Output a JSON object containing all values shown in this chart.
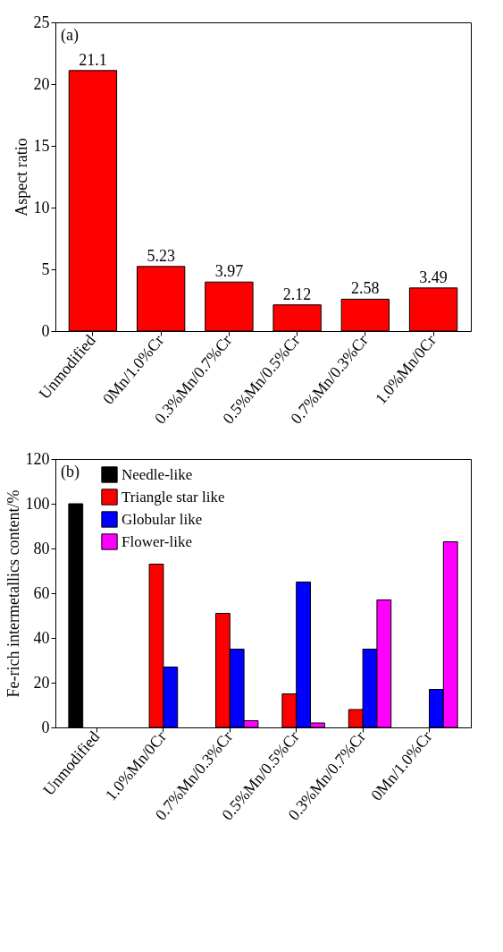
{
  "chart_data": [
    {
      "type": "bar",
      "annotations": [
        "(a)"
      ],
      "ylabel": "Aspect ratio",
      "categories": [
        "Unmodified",
        "0Mn/1.0%Cr",
        "0.3%Mn/0.7%Cr",
        "0.5%Mn/0.5%Cr",
        "0.7%Mn/0.3%Cr",
        "1.0%Mn/0Cr"
      ],
      "values": [
        21.1,
        5.23,
        3.97,
        2.12,
        2.58,
        3.49
      ],
      "color": "#ff0000",
      "data_labels": true,
      "ylim": [
        0,
        25
      ],
      "yticks": [
        0,
        5,
        10,
        15,
        20,
        25
      ],
      "grid": false,
      "legend": false
    },
    {
      "type": "bar",
      "annotations": [
        "(b)"
      ],
      "ylabel": "Fe-rich intermetallics content/%",
      "categories": [
        "Unmodified",
        "1.0%Mn/0Cr",
        "0.7%Mn/0.3%Cr",
        "0.5%Mn/0.5%Cr",
        "0.3%Mn/0.7%Cr",
        "0Mn/1.0%Cr"
      ],
      "series": [
        {
          "name": "Needle-like",
          "color": "#000000",
          "values": [
            100,
            null,
            null,
            null,
            null,
            null
          ]
        },
        {
          "name": "Triangle star like",
          "color": "#ff0000",
          "values": [
            null,
            73,
            51,
            15,
            8,
            null
          ]
        },
        {
          "name": "Globular like",
          "color": "#0000ff",
          "values": [
            null,
            27,
            35,
            65,
            35,
            17
          ]
        },
        {
          "name": "Flower-like",
          "color": "#ff00ff",
          "values": [
            null,
            null,
            3,
            2,
            57,
            83
          ]
        }
      ],
      "ylim": [
        0,
        120
      ],
      "yticks": [
        0,
        20,
        40,
        60,
        80,
        100,
        120
      ],
      "grid": false,
      "legend": "top left"
    }
  ]
}
